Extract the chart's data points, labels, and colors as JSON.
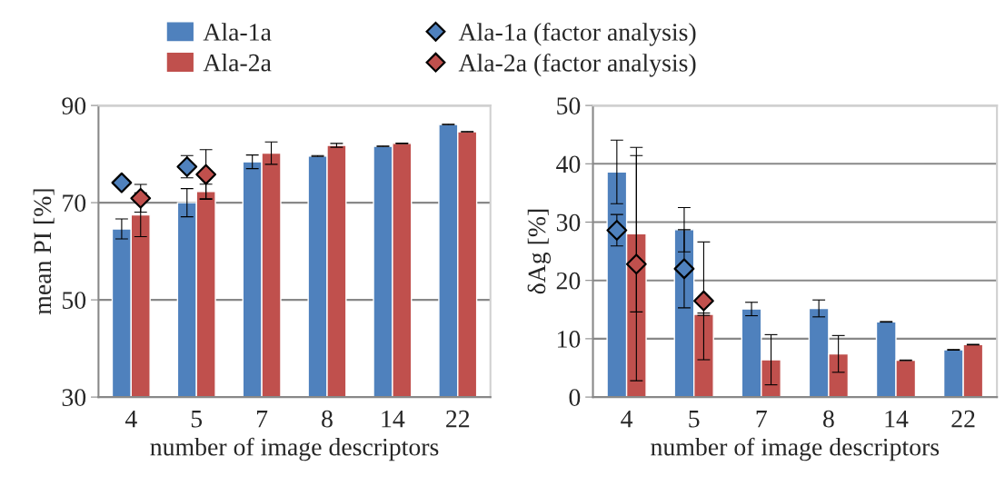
{
  "chart_data": [
    {
      "type": "bar",
      "xlabel": "number of image descriptors",
      "ylabel": "mean PI [%]",
      "categories": [
        "4",
        "5",
        "7",
        "8",
        "14",
        "22"
      ],
      "ylim": [
        30,
        90
      ],
      "yticks": [
        30,
        50,
        70,
        90
      ],
      "grid": "y",
      "legend": "top",
      "series": [
        {
          "name": "Ala-1a",
          "color": "#4f81bd",
          "values": [
            64.6,
            70.0,
            78.4,
            79.6,
            81.6,
            86.1
          ],
          "errors": [
            2.05,
            2.9,
            1.4,
            0.1,
            0.05,
            0.05
          ]
        },
        {
          "name": "Ala-2a",
          "color": "#c0504d",
          "values": [
            67.5,
            72.3,
            80.2,
            81.8,
            82.2,
            84.6
          ],
          "errors": [
            4.5,
            1.5,
            2.3,
            0.4,
            0.05,
            0.05
          ]
        },
        {
          "name": "Ala-1a (factor analysis)",
          "type": "scatter",
          "marker": "diamond",
          "color": "#4f81bd",
          "values": [
            74.1,
            77.4,
            null,
            null,
            null,
            null
          ],
          "errors": [
            null,
            2.3,
            null,
            null,
            null,
            null
          ]
        },
        {
          "name": "Ala-2a (factor analysis)",
          "type": "scatter",
          "marker": "diamond",
          "color": "#c0504d",
          "values": [
            70.9,
            75.8,
            null,
            null,
            null,
            null
          ],
          "errors": [
            2.85,
            5.1,
            null,
            null,
            null,
            null
          ]
        }
      ]
    },
    {
      "type": "bar",
      "xlabel": "number of image descriptors",
      "ylabel": "δAg [%]",
      "categories": [
        "4",
        "5",
        "7",
        "8",
        "14",
        "22"
      ],
      "ylim": [
        0,
        50
      ],
      "yticks": [
        0,
        10,
        20,
        30,
        40,
        50
      ],
      "grid": "y",
      "series": [
        {
          "name": "Ala-1a",
          "color": "#4f81bd",
          "values": [
            38.6,
            28.7,
            15.1,
            15.2,
            12.9,
            8.1
          ],
          "errors": [
            5.45,
            3.8,
            1.15,
            1.45,
            0.05,
            0.05
          ]
        },
        {
          "name": "Ala-2a",
          "color": "#c0504d",
          "values": [
            28.0,
            14.2,
            6.4,
            7.4,
            6.3,
            9.0
          ],
          "errors": [
            13.4,
            0.2,
            4.3,
            3.15,
            0.05,
            0.05
          ]
        },
        {
          "name": "Ala-1a (factor analysis)",
          "type": "scatter",
          "marker": "diamond",
          "color": "#4f81bd",
          "values": [
            28.6,
            22.0,
            null,
            null,
            null,
            null
          ],
          "errors": [
            2.7,
            6.7,
            null,
            null,
            null,
            null
          ]
        },
        {
          "name": "Ala-2a (factor analysis)",
          "type": "scatter",
          "marker": "diamond",
          "color": "#c0504d",
          "values": [
            22.8,
            16.5,
            null,
            null,
            null,
            null
          ],
          "errors": [
            20.0,
            10.1,
            null,
            null,
            null,
            null
          ]
        }
      ]
    }
  ]
}
